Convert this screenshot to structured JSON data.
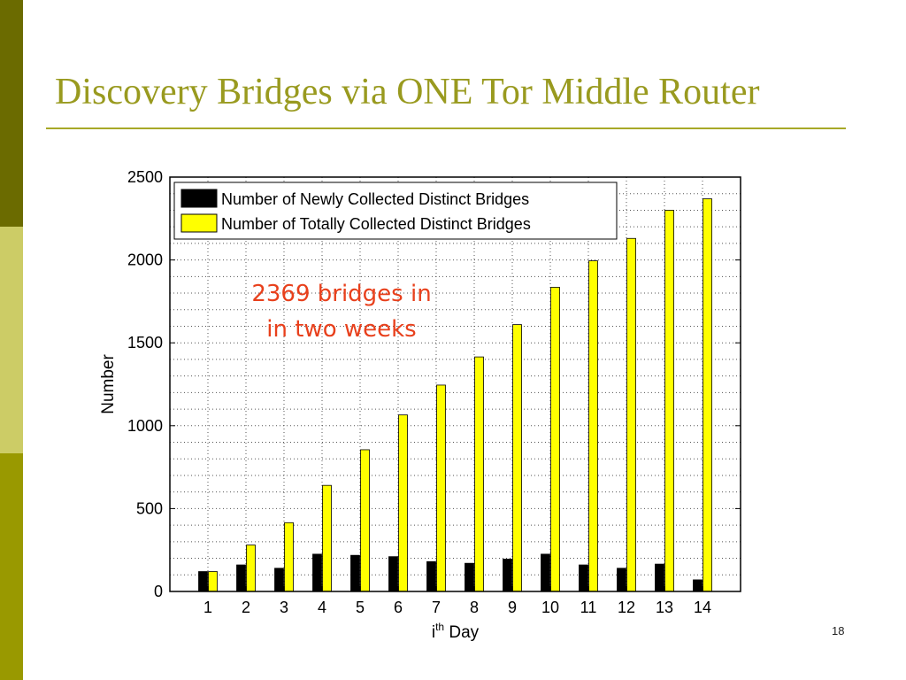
{
  "slide": {
    "title": "Discovery Bridges via ONE Tor Middle Router",
    "page_number": "18",
    "colors": {
      "sidebar_dark": "#6b6b00",
      "sidebar_light": "#cccc66",
      "sidebar_mid": "#999900",
      "title": "#999a1f",
      "annotation": "#e8401c"
    }
  },
  "chart_data": {
    "type": "bar",
    "categories": [
      "1",
      "2",
      "3",
      "4",
      "5",
      "6",
      "7",
      "8",
      "9",
      "10",
      "11",
      "12",
      "13",
      "14"
    ],
    "series": [
      {
        "name": "Number of Newly Collected Distinct Bridges",
        "color": "#000000",
        "values": [
          120,
          160,
          140,
          225,
          218,
          210,
          180,
          170,
          195,
          225,
          160,
          140,
          165,
          70
        ]
      },
      {
        "name": "Number of Totally Collected Distinct Bridges",
        "color": "#ffff00",
        "values": [
          120,
          280,
          415,
          640,
          855,
          1065,
          1245,
          1415,
          1610,
          1835,
          1995,
          2130,
          2300,
          2369
        ]
      }
    ],
    "xlabel_base": "i",
    "xlabel_sup": "th",
    "xlabel_rest": " Day",
    "ylabel": "Number",
    "ylim": [
      0,
      2500
    ],
    "yticks": [
      0,
      500,
      1000,
      1500,
      2000,
      2500
    ],
    "grid": true,
    "legend_position": "top-left",
    "annotation": [
      "2369 bridges in",
      "in two weeks"
    ]
  }
}
